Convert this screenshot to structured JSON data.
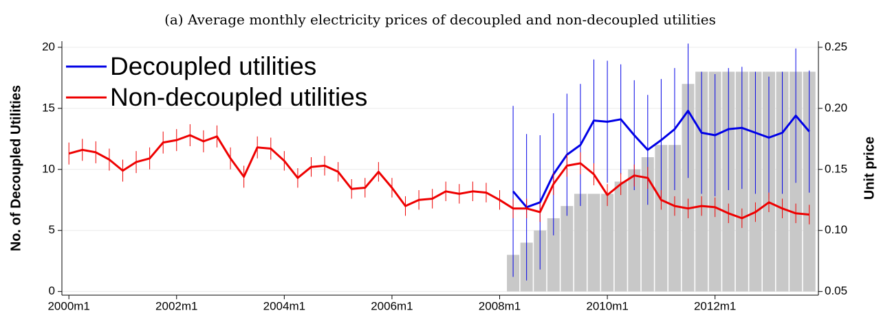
{
  "chart_data": {
    "type": "combo",
    "title": "(a) Average monthly electricity prices of decoupled and non-decoupled utilities",
    "y_label": "No. of Decoupled Utilities",
    "y2_label": "Unit price",
    "xlim": [
      1999.87,
      2013.92
    ],
    "xticks": [
      {
        "value": 2000,
        "label": "2000m1"
      },
      {
        "value": 2002,
        "label": "2002m1"
      },
      {
        "value": 2004,
        "label": "2004m1"
      },
      {
        "value": 2006,
        "label": "2006m1"
      },
      {
        "value": 2008,
        "label": "2008m1"
      },
      {
        "value": 2010,
        "label": "2010m1"
      },
      {
        "value": 2012,
        "label": "2012m1"
      }
    ],
    "ylim": [
      -0.3,
      20.5
    ],
    "yticks": [
      0,
      5,
      10,
      15,
      20
    ],
    "y2lim": [
      0.047,
      0.255
    ],
    "y2ticks": [
      {
        "value": 0.05,
        "label": "0.05"
      },
      {
        "value": 0.1,
        "label": "0.10"
      },
      {
        "value": 0.15,
        "label": "0.15"
      },
      {
        "value": 0.2,
        "label": "0.20"
      },
      {
        "value": 0.25,
        "label": "0.25"
      }
    ],
    "grid": true,
    "legend": "top-left",
    "series": [
      {
        "type": "bar",
        "color": "#c8c8c8",
        "x": [
          2008.25,
          2008.5,
          2008.75,
          2009,
          2009.25,
          2009.5,
          2009.75,
          2010,
          2010.25,
          2010.5,
          2010.75,
          2011,
          2011.25,
          2011.5,
          2011.75,
          2012,
          2012.25,
          2012.5,
          2012.75,
          2013,
          2013.25,
          2013.5,
          2013.75
        ],
        "values": [
          3,
          4,
          5,
          6,
          7,
          8,
          8,
          8,
          9,
          10,
          11,
          12,
          12,
          17,
          18,
          18,
          18,
          18,
          18,
          18,
          18,
          18,
          18
        ]
      },
      {
        "name": "Decoupled utilities",
        "type": "line",
        "color": "#0000e6",
        "axis": "y2",
        "x": [
          2008.25,
          2008.5,
          2008.75,
          2009,
          2009.25,
          2009.5,
          2009.75,
          2010,
          2010.25,
          2010.5,
          2010.75,
          2011,
          2011.25,
          2011.5,
          2011.75,
          2012,
          2012.25,
          2012.5,
          2012.75,
          2013,
          2013.25,
          2013.5,
          2013.75
        ],
        "values": [
          0.132,
          0.119,
          0.123,
          0.146,
          0.162,
          0.17,
          0.19,
          0.189,
          0.191,
          0.178,
          0.166,
          0.174,
          0.183,
          0.198,
          0.18,
          0.178,
          0.183,
          0.184,
          0.18,
          0.176,
          0.18,
          0.194,
          0.181
        ],
        "errors": [
          0.07,
          0.06,
          0.055,
          0.05,
          0.05,
          0.05,
          0.05,
          0.05,
          0.045,
          0.045,
          0.045,
          0.05,
          0.05,
          0.055,
          0.05,
          0.05,
          0.05,
          0.05,
          0.05,
          0.05,
          0.05,
          0.055,
          0.05
        ]
      },
      {
        "name": "Non-decoupled utilities",
        "type": "line",
        "color": "#ee0000",
        "axis": "y2",
        "x": [
          2000,
          2000.25,
          2000.5,
          2000.75,
          2001,
          2001.25,
          2001.5,
          2001.75,
          2002,
          2002.25,
          2002.5,
          2002.75,
          2003,
          2003.25,
          2003.5,
          2003.75,
          2004,
          2004.25,
          2004.5,
          2004.75,
          2005,
          2005.25,
          2005.5,
          2005.75,
          2006,
          2006.25,
          2006.5,
          2006.75,
          2007,
          2007.25,
          2007.5,
          2007.75,
          2008,
          2008.25,
          2008.5,
          2008.75,
          2009,
          2009.25,
          2009.5,
          2009.75,
          2010,
          2010.25,
          2010.5,
          2010.75,
          2011,
          2011.25,
          2011.5,
          2011.75,
          2012,
          2012.25,
          2012.5,
          2012.75,
          2013,
          2013.25,
          2013.5,
          2013.75
        ],
        "values": [
          0.163,
          0.166,
          0.164,
          0.158,
          0.149,
          0.156,
          0.159,
          0.172,
          0.174,
          0.178,
          0.173,
          0.177,
          0.159,
          0.144,
          0.168,
          0.167,
          0.157,
          0.143,
          0.152,
          0.153,
          0.148,
          0.134,
          0.135,
          0.148,
          0.135,
          0.12,
          0.125,
          0.126,
          0.132,
          0.13,
          0.132,
          0.131,
          0.125,
          0.118,
          0.118,
          0.115,
          0.138,
          0.153,
          0.155,
          0.146,
          0.129,
          0.138,
          0.145,
          0.143,
          0.125,
          0.12,
          0.118,
          0.12,
          0.119,
          0.114,
          0.11,
          0.115,
          0.123,
          0.118,
          0.114,
          0.113
        ],
        "errors": [
          0.009,
          0.009,
          0.009,
          0.009,
          0.009,
          0.009,
          0.009,
          0.009,
          0.009,
          0.009,
          0.009,
          0.009,
          0.009,
          0.009,
          0.009,
          0.009,
          0.008,
          0.008,
          0.008,
          0.008,
          0.008,
          0.008,
          0.008,
          0.008,
          0.008,
          0.008,
          0.008,
          0.008,
          0.008,
          0.008,
          0.008,
          0.008,
          0.008,
          0.008,
          0.008,
          0.008,
          0.009,
          0.009,
          0.009,
          0.009,
          0.009,
          0.009,
          0.009,
          0.009,
          0.008,
          0.008,
          0.008,
          0.008,
          0.008,
          0.008,
          0.008,
          0.008,
          0.008,
          0.008,
          0.008,
          0.008
        ]
      }
    ]
  }
}
